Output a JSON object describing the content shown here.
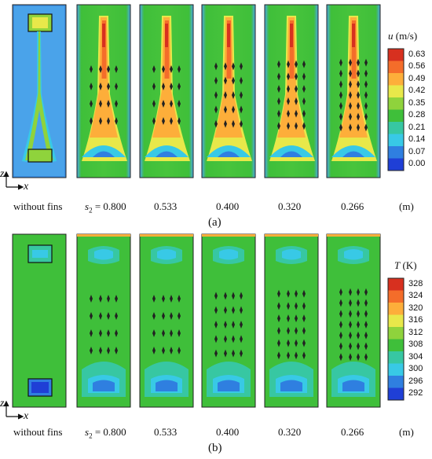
{
  "panel_a": {
    "label": "(a)",
    "quantity_symbol": "u",
    "quantity_unit": "(m/s)",
    "colorbar_ticks": [
      "0.63",
      "0.56",
      "0.49",
      "0.42",
      "0.35",
      "0.28",
      "0.21",
      "0.14",
      "0.07",
      "0.00"
    ],
    "case_labels": [
      "without fins",
      "s",
      "= 0.800",
      "0.533",
      "0.400",
      "0.320",
      "0.266",
      "(m)"
    ]
  },
  "panel_b": {
    "label": "(b)",
    "quantity_symbol": "T",
    "quantity_unit": "(K)",
    "colorbar_ticks": [
      "328",
      "324",
      "320",
      "316",
      "312",
      "308",
      "304",
      "300",
      "296",
      "292"
    ],
    "case_labels": [
      "without fins",
      "s",
      "= 0.800",
      "0.533",
      "0.400",
      "0.320",
      "0.266",
      "(m)"
    ]
  },
  "axes": {
    "z": "z",
    "x": "x",
    "s_subscript": "2"
  },
  "colors": {
    "scale": [
      "#d7301f",
      "#f46d2a",
      "#fdae3a",
      "#e8e84a",
      "#8fd33c",
      "#3fbf3a",
      "#37c7a2",
      "#38c9e6",
      "#2f7fe0",
      "#1f3fd6"
    ],
    "frame": "#222222"
  }
}
